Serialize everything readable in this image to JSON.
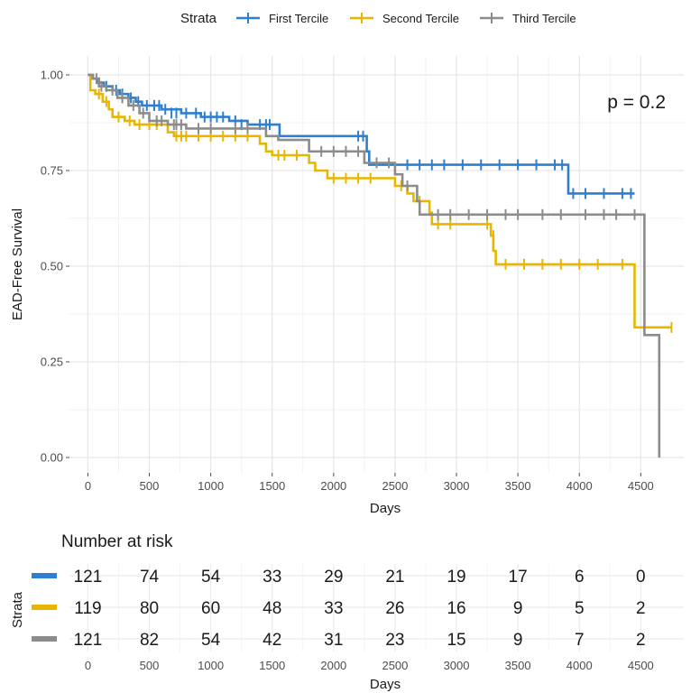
{
  "legend": {
    "title": "Strata",
    "items": [
      "First Tercile",
      "Second Tercile",
      "Third Tercile"
    ]
  },
  "p_value_label": "p = 0.2",
  "colors": {
    "first": "#2e7fcf",
    "second": "#e8b600",
    "third": "#8c8c8c"
  },
  "chart_data": [
    {
      "type": "line",
      "subtype": "kaplan-meier step curves",
      "ylabel": "EAD-Free Survival",
      "xlabel": "Days",
      "xlim": [
        -150,
        4850
      ],
      "ylim": [
        0,
        1.0
      ],
      "x_ticks": [
        "0",
        "500",
        "1000",
        "1500",
        "2000",
        "2500",
        "3000",
        "3500",
        "4000",
        "4500"
      ],
      "y_ticks": [
        "0.00",
        "0.25",
        "0.50",
        "0.75",
        "1.00"
      ],
      "grid": true,
      "legend_position": "top",
      "series": [
        {
          "name": "First Tercile",
          "color": "#2e7fcf",
          "steps": [
            [
              0,
              1.0
            ],
            [
              40,
              0.99
            ],
            [
              80,
              0.98
            ],
            [
              130,
              0.97
            ],
            [
              200,
              0.96
            ],
            [
              260,
              0.95
            ],
            [
              330,
              0.94
            ],
            [
              390,
              0.93
            ],
            [
              440,
              0.92
            ],
            [
              600,
              0.91
            ],
            [
              760,
              0.9
            ],
            [
              920,
              0.89
            ],
            [
              1150,
              0.88
            ],
            [
              1300,
              0.87
            ],
            [
              1560,
              0.84
            ],
            [
              2270,
              0.8
            ],
            [
              2290,
              0.765
            ],
            [
              3910,
              0.69
            ],
            [
              4450,
              0.69
            ]
          ],
          "censored": [
            [
              150,
              0.97
            ],
            [
              230,
              0.96
            ],
            [
              280,
              0.95
            ],
            [
              350,
              0.94
            ],
            [
              410,
              0.93
            ],
            [
              480,
              0.92
            ],
            [
              540,
              0.92
            ],
            [
              580,
              0.92
            ],
            [
              630,
              0.91
            ],
            [
              680,
              0.9
            ],
            [
              720,
              0.9
            ],
            [
              800,
              0.9
            ],
            [
              880,
              0.9
            ],
            [
              950,
              0.89
            ],
            [
              1000,
              0.89
            ],
            [
              1050,
              0.89
            ],
            [
              1100,
              0.89
            ],
            [
              1200,
              0.88
            ],
            [
              1250,
              0.87
            ],
            [
              1400,
              0.87
            ],
            [
              1450,
              0.87
            ],
            [
              1480,
              0.87
            ],
            [
              2200,
              0.84
            ],
            [
              2240,
              0.84
            ],
            [
              2600,
              0.765
            ],
            [
              2700,
              0.765
            ],
            [
              2800,
              0.765
            ],
            [
              2900,
              0.765
            ],
            [
              3050,
              0.765
            ],
            [
              3200,
              0.765
            ],
            [
              3350,
              0.765
            ],
            [
              3500,
              0.765
            ],
            [
              3650,
              0.765
            ],
            [
              3800,
              0.765
            ],
            [
              3860,
              0.765
            ],
            [
              3950,
              0.69
            ],
            [
              4050,
              0.69
            ],
            [
              4200,
              0.69
            ],
            [
              4350,
              0.69
            ],
            [
              4420,
              0.69
            ]
          ]
        },
        {
          "name": "Second Tercile",
          "color": "#e8b600",
          "steps": [
            [
              0,
              1.0
            ],
            [
              20,
              0.96
            ],
            [
              60,
              0.95
            ],
            [
              120,
              0.93
            ],
            [
              170,
              0.91
            ],
            [
              200,
              0.89
            ],
            [
              300,
              0.88
            ],
            [
              380,
              0.87
            ],
            [
              650,
              0.85
            ],
            [
              700,
              0.84
            ],
            [
              1400,
              0.82
            ],
            [
              1450,
              0.8
            ],
            [
              1500,
              0.79
            ],
            [
              1800,
              0.77
            ],
            [
              1850,
              0.75
            ],
            [
              1950,
              0.73
            ],
            [
              2500,
              0.71
            ],
            [
              2600,
              0.69
            ],
            [
              2650,
              0.67
            ],
            [
              2780,
              0.64
            ],
            [
              2800,
              0.61
            ],
            [
              3280,
              0.58
            ],
            [
              3300,
              0.54
            ],
            [
              3320,
              0.505
            ],
            [
              4450,
              0.34
            ],
            [
              4750,
              0.34
            ]
          ],
          "censored": [
            [
              90,
              0.95
            ],
            [
              150,
              0.93
            ],
            [
              250,
              0.89
            ],
            [
              340,
              0.88
            ],
            [
              420,
              0.87
            ],
            [
              500,
              0.87
            ],
            [
              560,
              0.87
            ],
            [
              720,
              0.84
            ],
            [
              760,
              0.84
            ],
            [
              800,
              0.84
            ],
            [
              900,
              0.84
            ],
            [
              1000,
              0.84
            ],
            [
              1100,
              0.84
            ],
            [
              1200,
              0.84
            ],
            [
              1300,
              0.84
            ],
            [
              1550,
              0.79
            ],
            [
              1600,
              0.79
            ],
            [
              1700,
              0.79
            ],
            [
              2000,
              0.73
            ],
            [
              2100,
              0.73
            ],
            [
              2200,
              0.73
            ],
            [
              2300,
              0.73
            ],
            [
              2550,
              0.71
            ],
            [
              2700,
              0.67
            ],
            [
              2850,
              0.61
            ],
            [
              2950,
              0.61
            ],
            [
              3250,
              0.61
            ],
            [
              3300,
              0.58
            ],
            [
              3400,
              0.505
            ],
            [
              3550,
              0.505
            ],
            [
              3700,
              0.505
            ],
            [
              3850,
              0.505
            ],
            [
              4000,
              0.505
            ],
            [
              4150,
              0.505
            ],
            [
              4350,
              0.505
            ],
            [
              4750,
              0.34
            ]
          ]
        },
        {
          "name": "Third Tercile",
          "color": "#8c8c8c",
          "steps": [
            [
              0,
              1.0
            ],
            [
              40,
              0.99
            ],
            [
              90,
              0.97
            ],
            [
              150,
              0.96
            ],
            [
              240,
              0.94
            ],
            [
              330,
              0.92
            ],
            [
              420,
              0.9
            ],
            [
              500,
              0.88
            ],
            [
              650,
              0.87
            ],
            [
              800,
              0.86
            ],
            [
              1400,
              0.86
            ],
            [
              1450,
              0.84
            ],
            [
              1550,
              0.83
            ],
            [
              1800,
              0.8
            ],
            [
              2250,
              0.77
            ],
            [
              2500,
              0.74
            ],
            [
              2560,
              0.71
            ],
            [
              2680,
              0.67
            ],
            [
              2700,
              0.635
            ],
            [
              4530,
              0.32
            ],
            [
              4650,
              0.0
            ]
          ],
          "censored": [
            [
              70,
              0.99
            ],
            [
              110,
              0.97
            ],
            [
              200,
              0.96
            ],
            [
              280,
              0.94
            ],
            [
              370,
              0.92
            ],
            [
              450,
              0.9
            ],
            [
              560,
              0.88
            ],
            [
              600,
              0.88
            ],
            [
              700,
              0.87
            ],
            [
              720,
              0.87
            ],
            [
              760,
              0.87
            ],
            [
              900,
              0.86
            ],
            [
              1000,
              0.86
            ],
            [
              1200,
              0.86
            ],
            [
              1300,
              0.86
            ],
            [
              1900,
              0.8
            ],
            [
              2000,
              0.8
            ],
            [
              2100,
              0.8
            ],
            [
              2200,
              0.8
            ],
            [
              2350,
              0.77
            ],
            [
              2450,
              0.77
            ],
            [
              2600,
              0.71
            ],
            [
              2850,
              0.635
            ],
            [
              2950,
              0.635
            ],
            [
              3100,
              0.635
            ],
            [
              3250,
              0.635
            ],
            [
              3400,
              0.635
            ],
            [
              3500,
              0.635
            ],
            [
              3700,
              0.635
            ],
            [
              3850,
              0.635
            ],
            [
              4050,
              0.635
            ],
            [
              4200,
              0.635
            ],
            [
              4300,
              0.635
            ],
            [
              4450,
              0.635
            ]
          ]
        }
      ]
    },
    {
      "type": "table",
      "title": "Number at risk",
      "ylabel": "Strata",
      "xlabel": "Days",
      "columns": [
        "0",
        "500",
        "1000",
        "1500",
        "2000",
        "2500",
        "3000",
        "3500",
        "4000",
        "4500"
      ],
      "rows": [
        {
          "name": "First Tercile",
          "values": [
            "121",
            "74",
            "54",
            "33",
            "29",
            "21",
            "19",
            "17",
            "6",
            "0"
          ]
        },
        {
          "name": "Second Tercile",
          "values": [
            "119",
            "80",
            "60",
            "48",
            "33",
            "26",
            "16",
            "9",
            "5",
            "2"
          ]
        },
        {
          "name": "Third Tercile",
          "values": [
            "121",
            "82",
            "54",
            "42",
            "31",
            "23",
            "15",
            "9",
            "7",
            "2"
          ]
        }
      ]
    }
  ]
}
